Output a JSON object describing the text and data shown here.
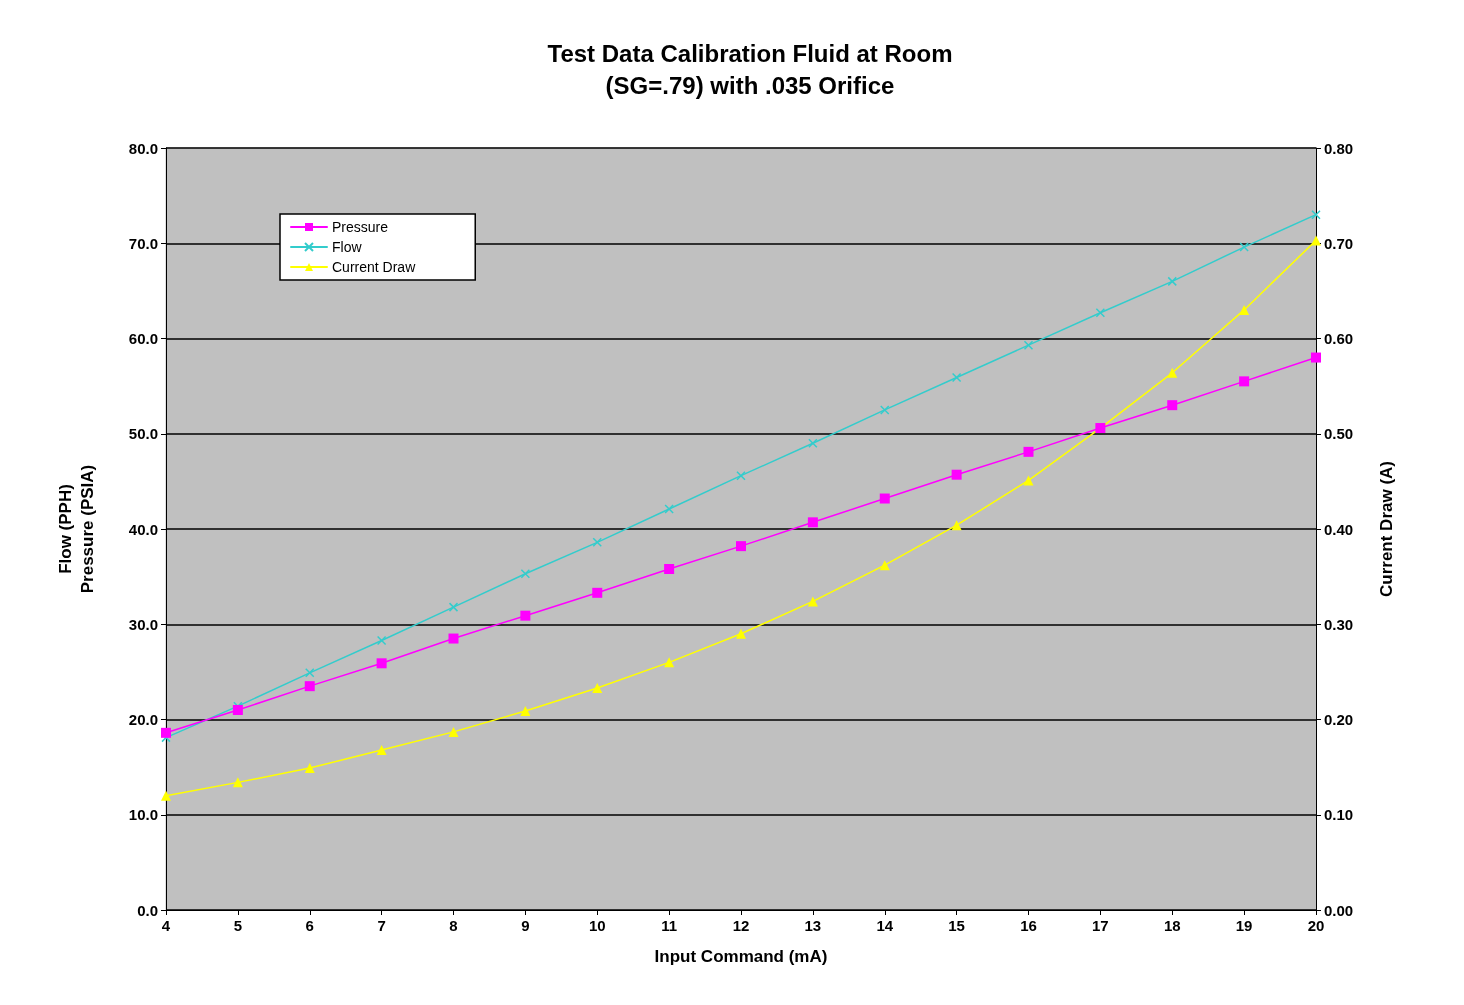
{
  "chart_data": {
    "type": "line",
    "title": "Test Data Calibration Fluid at Room\n(SG=.79) with .035 Orifice",
    "xlabel": "Input Command (mA)",
    "ylabel": "Flow (PPH)\nPressure (PSIA)",
    "y2label": "Current Draw (A)",
    "x": [
      4,
      5,
      6,
      7,
      8,
      9,
      10,
      11,
      12,
      13,
      14,
      15,
      16,
      17,
      18,
      19,
      20
    ],
    "series": [
      {
        "name": "Pressure",
        "color": "#ff00ff",
        "marker": "square",
        "values": [
          18.6,
          21.0,
          23.5,
          25.9,
          28.5,
          30.9,
          33.3,
          35.8,
          38.2,
          40.7,
          43.2,
          45.7,
          48.1,
          50.6,
          53.0,
          55.5,
          58.0
        ]
      },
      {
        "name": "Flow",
        "color": "#33cccc",
        "marker": "cross",
        "values": [
          18.1,
          21.4,
          24.9,
          28.3,
          31.8,
          35.3,
          38.6,
          42.1,
          45.6,
          49.0,
          52.5,
          55.9,
          59.3,
          62.7,
          66.0,
          69.6,
          73.0
        ]
      },
      {
        "name": "Current Draw",
        "color": "#ffff00",
        "marker": "triangle",
        "axis": "y2",
        "values": [
          0.12,
          0.134,
          0.149,
          0.168,
          0.187,
          0.209,
          0.233,
          0.26,
          0.29,
          0.324,
          0.362,
          0.404,
          0.451,
          0.506,
          0.564,
          0.63,
          0.703
        ]
      }
    ],
    "xlim": [
      4,
      20
    ],
    "xticks": [
      4,
      5,
      6,
      7,
      8,
      9,
      10,
      11,
      12,
      13,
      14,
      15,
      16,
      17,
      18,
      19,
      20
    ],
    "ylim": [
      0,
      80
    ],
    "yticks": [
      {
        "value": 0,
        "label": "0.0"
      },
      {
        "value": 10,
        "label": "10.0"
      },
      {
        "value": 20,
        "label": "20.0"
      },
      {
        "value": 30,
        "label": "30.0"
      },
      {
        "value": 40,
        "label": "40.0"
      },
      {
        "value": 50,
        "label": "50.0"
      },
      {
        "value": 60,
        "label": "60.0"
      },
      {
        "value": 70,
        "label": "70.0"
      },
      {
        "value": 80,
        "label": "80.0"
      }
    ],
    "y2lim": [
      0,
      0.8
    ],
    "y2ticks": [
      {
        "value": 0,
        "label": "0.00"
      },
      {
        "value": 0.1,
        "label": "0.10"
      },
      {
        "value": 0.2,
        "label": "0.20"
      },
      {
        "value": 0.3,
        "label": "0.30"
      },
      {
        "value": 0.4,
        "label": "0.40"
      },
      {
        "value": 0.5,
        "label": "0.50"
      },
      {
        "value": 0.6,
        "label": "0.60"
      },
      {
        "value": 0.7,
        "label": "0.70"
      },
      {
        "value": 0.8,
        "label": "0.80"
      }
    ],
    "grid": "y",
    "legend": "top left",
    "line_style": "solid"
  }
}
